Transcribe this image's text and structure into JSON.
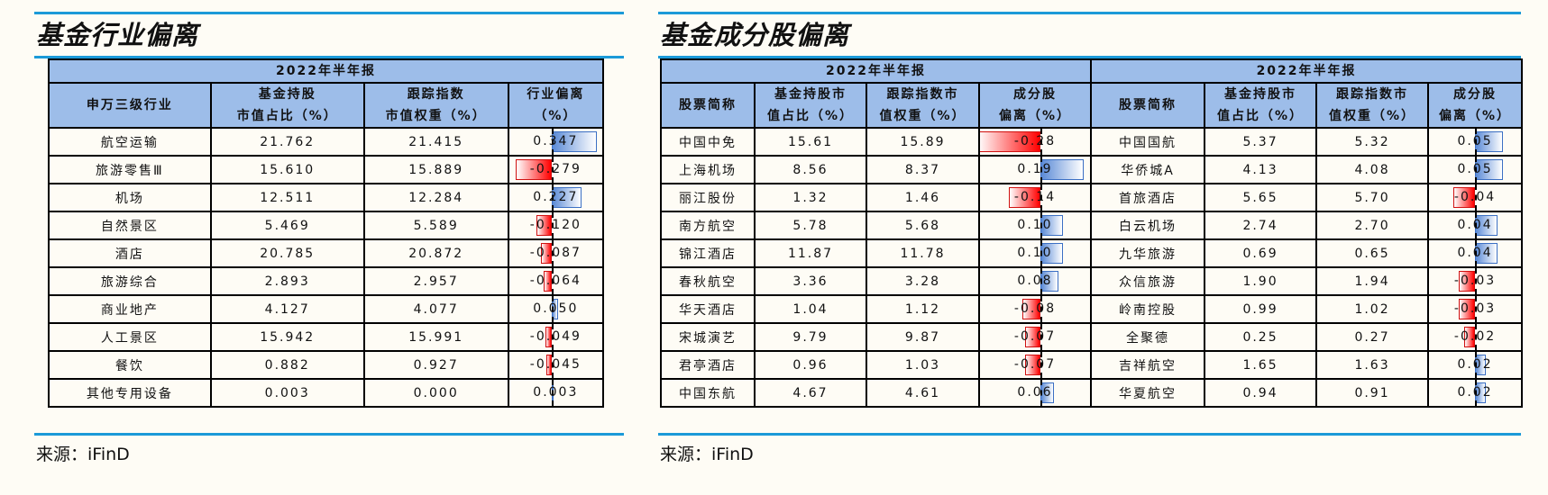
{
  "left_panel": {
    "title": "基金行业偏离",
    "period_header": "2022年半年报",
    "columns": [
      "申万三级行业",
      "基金持股\n市值占比（%）",
      "跟踪指数\n市值权重（%）",
      "行业偏离\n（%）"
    ],
    "rows": [
      {
        "name": "航空运输",
        "fund": "21.762",
        "index": "21.415",
        "dev": "0.347",
        "dev_value": 0.347
      },
      {
        "name": "旅游零售Ⅲ",
        "fund": "15.610",
        "index": "15.889",
        "dev": "-0.279",
        "dev_value": -0.279
      },
      {
        "name": "机场",
        "fund": "12.511",
        "index": "12.284",
        "dev": "0.227",
        "dev_value": 0.227
      },
      {
        "name": "自然景区",
        "fund": "5.469",
        "index": "5.589",
        "dev": "-0.120",
        "dev_value": -0.12
      },
      {
        "name": "酒店",
        "fund": "20.785",
        "index": "20.872",
        "dev": "-0.087",
        "dev_value": -0.087
      },
      {
        "name": "旅游综合",
        "fund": "2.893",
        "index": "2.957",
        "dev": "-0.064",
        "dev_value": -0.064
      },
      {
        "name": "商业地产",
        "fund": "4.127",
        "index": "4.077",
        "dev": "0.050",
        "dev_value": 0.05
      },
      {
        "name": "人工景区",
        "fund": "15.942",
        "index": "15.991",
        "dev": "-0.049",
        "dev_value": -0.049
      },
      {
        "name": "餐饮",
        "fund": "0.882",
        "index": "0.927",
        "dev": "-0.045",
        "dev_value": -0.045
      },
      {
        "name": "其他专用设备",
        "fund": "0.003",
        "index": "0.000",
        "dev": "0.003",
        "dev_value": 0.003
      }
    ],
    "source": "来源：iFinD"
  },
  "right_panel": {
    "title": "基金成分股偏离",
    "period_header_a": "2022年半年报",
    "period_header_b": "2022年半年报",
    "columns": [
      "股票简称",
      "基金持股市\n值占比（%）",
      "跟踪指数市\n值权重（%）",
      "成分股\n偏离（%）"
    ],
    "rows_a": [
      {
        "name": "中国中免",
        "fund": "15.61",
        "index": "15.89",
        "dev": "-0.28",
        "dev_value": -0.28
      },
      {
        "name": "上海机场",
        "fund": "8.56",
        "index": "8.37",
        "dev": "0.19",
        "dev_value": 0.19
      },
      {
        "name": "丽江股份",
        "fund": "1.32",
        "index": "1.46",
        "dev": "-0.14",
        "dev_value": -0.14
      },
      {
        "name": "南方航空",
        "fund": "5.78",
        "index": "5.68",
        "dev": "0.10",
        "dev_value": 0.1
      },
      {
        "name": "锦江酒店",
        "fund": "11.87",
        "index": "11.78",
        "dev": "0.10",
        "dev_value": 0.1
      },
      {
        "name": "春秋航空",
        "fund": "3.36",
        "index": "3.28",
        "dev": "0.08",
        "dev_value": 0.08
      },
      {
        "name": "华天酒店",
        "fund": "1.04",
        "index": "1.12",
        "dev": "-0.08",
        "dev_value": -0.08
      },
      {
        "name": "宋城演艺",
        "fund": "9.79",
        "index": "9.87",
        "dev": "-0.07",
        "dev_value": -0.07
      },
      {
        "name": "君亭酒店",
        "fund": "0.96",
        "index": "1.03",
        "dev": "-0.07",
        "dev_value": -0.07
      },
      {
        "name": "中国东航",
        "fund": "4.67",
        "index": "4.61",
        "dev": "0.06",
        "dev_value": 0.06
      }
    ],
    "rows_b": [
      {
        "name": "中国国航",
        "fund": "5.37",
        "index": "5.32",
        "dev": "0.05",
        "dev_value": 0.05
      },
      {
        "name": "华侨城A",
        "fund": "4.13",
        "index": "4.08",
        "dev": "0.05",
        "dev_value": 0.05
      },
      {
        "name": "首旅酒店",
        "fund": "5.65",
        "index": "5.70",
        "dev": "-0.04",
        "dev_value": -0.04
      },
      {
        "name": "白云机场",
        "fund": "2.74",
        "index": "2.70",
        "dev": "0.04",
        "dev_value": 0.04
      },
      {
        "name": "九华旅游",
        "fund": "0.69",
        "index": "0.65",
        "dev": "0.04",
        "dev_value": 0.04
      },
      {
        "name": "众信旅游",
        "fund": "1.90",
        "index": "1.94",
        "dev": "-0.03",
        "dev_value": -0.03
      },
      {
        "name": "岭南控股",
        "fund": "0.99",
        "index": "1.02",
        "dev": "-0.03",
        "dev_value": -0.03
      },
      {
        "name": "全聚德",
        "fund": "0.25",
        "index": "0.27",
        "dev": "-0.02",
        "dev_value": -0.02
      },
      {
        "name": "吉祥航空",
        "fund": "1.65",
        "index": "1.63",
        "dev": "0.02",
        "dev_value": 0.02
      },
      {
        "name": "华夏航空",
        "fund": "0.94",
        "index": "0.91",
        "dev": "0.02",
        "dev_value": 0.02
      }
    ],
    "source": "来源：iFinD"
  }
}
